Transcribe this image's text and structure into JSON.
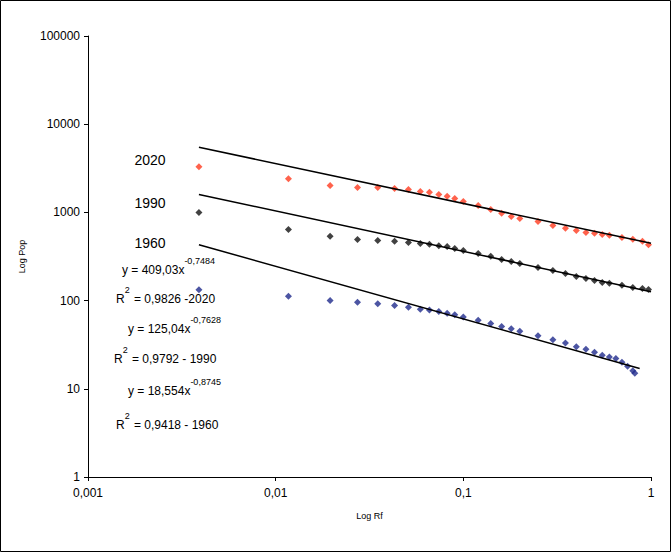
{
  "chart_data": {
    "type": "scatter",
    "x_label": "Log Rf",
    "y_label": "Log Pop",
    "log": true,
    "grid": false,
    "xlim": [
      0.001,
      1
    ],
    "ylim": [
      1,
      100000
    ],
    "xticks": [
      {
        "value": 0.001,
        "label": "0,001"
      },
      {
        "value": 0.01,
        "label": "0,01"
      },
      {
        "value": 0.1,
        "label": "0,1"
      },
      1
    ],
    "yticks": [
      1,
      10,
      100,
      1000,
      10000,
      100000
    ],
    "series": [
      {
        "name": "2020",
        "type": "scatter",
        "color": "#ff3b1f",
        "marker": "diamond",
        "x": [
          0.0039,
          0.0117,
          0.0195,
          0.0273,
          0.035,
          0.043,
          0.051,
          0.059,
          0.066,
          0.074,
          0.082,
          0.09,
          0.1,
          0.12,
          0.14,
          0.16,
          0.18,
          0.2,
          0.25,
          0.3,
          0.35,
          0.4,
          0.45,
          0.5,
          0.55,
          0.6,
          0.7,
          0.8,
          0.9,
          0.97
        ],
        "values": [
          3300,
          2400,
          2020,
          1920,
          1920,
          1870,
          1820,
          1730,
          1690,
          1600,
          1520,
          1440,
          1330,
          1200,
          1080,
          975,
          900,
          855,
          790,
          710,
          660,
          625,
          590,
          580,
          560,
          550,
          520,
          495,
          470,
          430
        ]
      },
      {
        "name": "1990",
        "type": "scatter",
        "color": "#111111",
        "marker": "diamond",
        "x": [
          0.0039,
          0.0117,
          0.0195,
          0.0273,
          0.035,
          0.043,
          0.051,
          0.059,
          0.066,
          0.074,
          0.082,
          0.09,
          0.1,
          0.12,
          0.14,
          0.16,
          0.18,
          0.2,
          0.25,
          0.3,
          0.35,
          0.4,
          0.45,
          0.5,
          0.55,
          0.6,
          0.7,
          0.8,
          0.9,
          0.97
        ],
        "values": [
          1000,
          640,
          535,
          494,
          480,
          470,
          455,
          445,
          435,
          420,
          410,
          390,
          370,
          343,
          318,
          293,
          278,
          263,
          238,
          220,
          203,
          188,
          178,
          169,
          160,
          157,
          149,
          141,
          137,
          134
        ]
      },
      {
        "name": "1960",
        "type": "scatter",
        "color": "#1f2a8c",
        "marker": "diamond",
        "x": [
          0.0039,
          0.0117,
          0.0195,
          0.0273,
          0.035,
          0.043,
          0.051,
          0.059,
          0.066,
          0.074,
          0.082,
          0.09,
          0.1,
          0.12,
          0.14,
          0.16,
          0.18,
          0.2,
          0.25,
          0.3,
          0.35,
          0.4,
          0.45,
          0.5,
          0.55,
          0.6,
          0.65,
          0.7,
          0.75,
          0.8,
          0.82
        ],
        "values": [
          133,
          112,
          100,
          96,
          92,
          88,
          84,
          80,
          78,
          75,
          72,
          69,
          65,
          60,
          55,
          51,
          48,
          45,
          40,
          36,
          33,
          30,
          28,
          26,
          24,
          23,
          22,
          20,
          18,
          16,
          15
        ]
      },
      {
        "type": "line",
        "color": "#000000",
        "line_style": "solid",
        "x": [
          0.0039,
          1
        ],
        "values": [
          5480,
          446
        ]
      },
      {
        "type": "line",
        "color": "#000000",
        "line_style": "solid",
        "x": [
          0.0039,
          1
        ],
        "values": [
          1600,
          126
        ]
      },
      {
        "type": "line",
        "color": "#000000",
        "line_style": "solid",
        "x": [
          0.0039,
          0.87
        ],
        "values": [
          430,
          17
        ]
      }
    ],
    "annotations": [
      {
        "parts": [
          {
            "text": "y = 409,03x"
          },
          {
            "sup": "-0,7484"
          }
        ]
      },
      {
        "parts": [
          {
            "text": "R"
          },
          {
            "sup": "2"
          },
          {
            "text": " = 0,9826 -2020"
          }
        ]
      },
      {
        "parts": [
          {
            "text": "y = 125,04x"
          },
          {
            "sup": "-0,7628"
          }
        ]
      },
      {
        "parts": [
          {
            "text": "R"
          },
          {
            "sup": "2"
          },
          {
            "text": " = 0,9792 - 1990"
          }
        ]
      },
      {
        "parts": [
          {
            "text": "y = 18,554x"
          },
          {
            "sup": "-0,8745"
          }
        ]
      },
      {
        "parts": [
          {
            "text": "R"
          },
          {
            "sup": "2"
          },
          {
            "text": " = 0,9418 - 1960"
          }
        ]
      }
    ]
  }
}
